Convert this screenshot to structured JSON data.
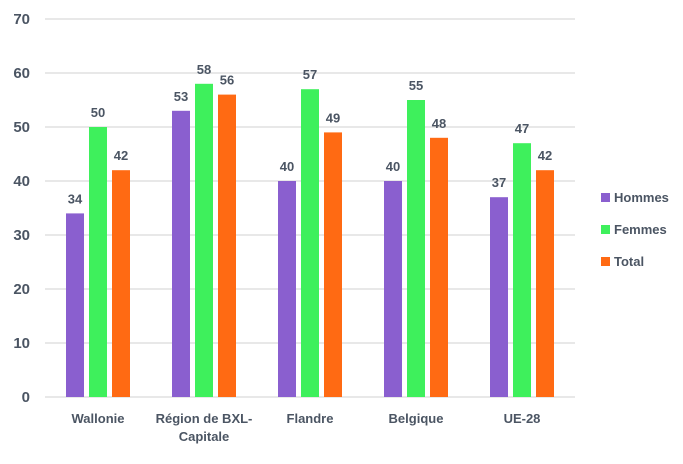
{
  "chart_data": {
    "type": "bar",
    "categories": [
      "Wallonie",
      "Région de BXL-Capitale",
      "Flandre",
      "Belgique",
      "UE-28"
    ],
    "category_label_lines": [
      [
        "Wallonie"
      ],
      [
        "Région de BXL-",
        "Capitale"
      ],
      [
        "Flandre"
      ],
      [
        "Belgique"
      ],
      [
        "UE-28"
      ]
    ],
    "series": [
      {
        "name": "Hommes",
        "color": "#8a5fcf",
        "values": [
          34,
          53,
          40,
          40,
          37
        ]
      },
      {
        "name": "Femmes",
        "color": "#3ef05c",
        "values": [
          50,
          58,
          57,
          55,
          47
        ]
      },
      {
        "name": "Total",
        "color": "#ff6a13",
        "values": [
          42,
          56,
          49,
          48,
          42
        ]
      }
    ],
    "ylim": [
      0,
      70
    ],
    "yticks": [
      0,
      10,
      20,
      30,
      40,
      50,
      60,
      70
    ],
    "grid": true,
    "legend_position": "right"
  }
}
